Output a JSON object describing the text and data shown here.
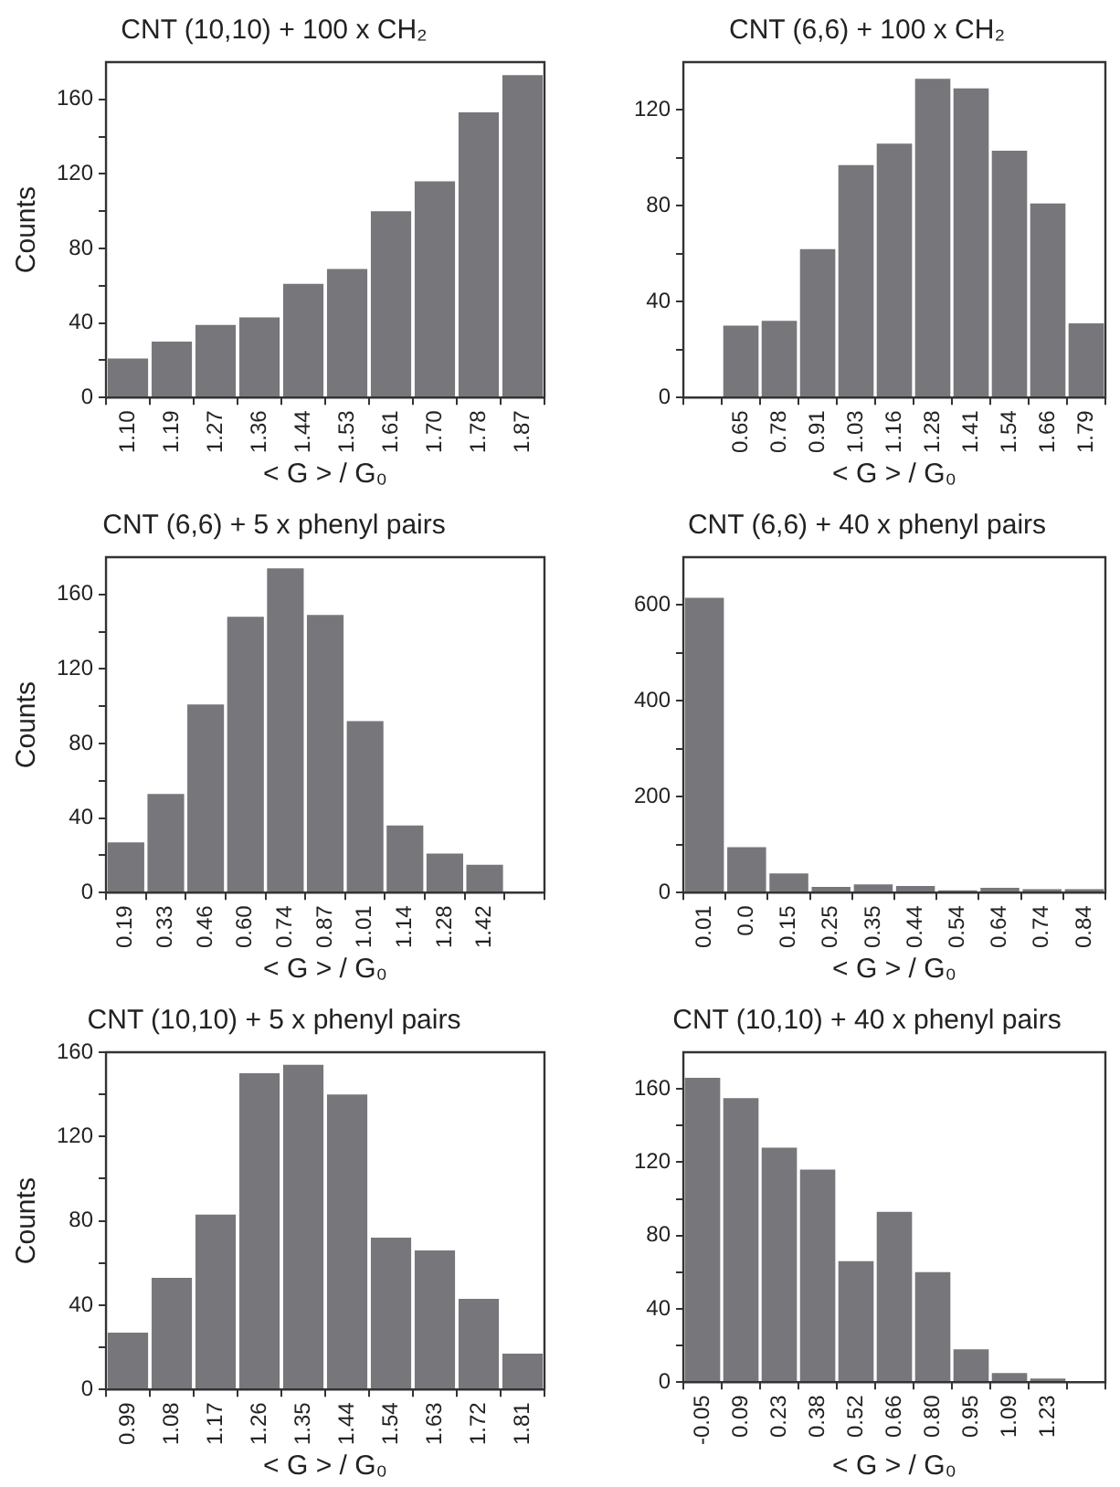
{
  "chart_data": [
    {
      "type": "bar",
      "title": "CNT (10,10) + 100 x CH₂",
      "xlabel": "< G > / G₀",
      "ylabel": "Counts",
      "categories": [
        "1.10",
        "1.19",
        "1.27",
        "1.36",
        "1.44",
        "1.53",
        "1.61",
        "1.70",
        "1.78",
        "1.87"
      ],
      "values": [
        21,
        30,
        39,
        43,
        61,
        69,
        100,
        116,
        153,
        173
      ],
      "color": "#77777b",
      "ylim": [
        0,
        180
      ],
      "yticks": [
        0,
        {
          "value": 20,
          "label": null
        },
        40,
        {
          "value": 60,
          "label": null
        },
        80,
        {
          "value": 100,
          "label": null
        },
        120,
        {
          "value": 140,
          "label": null
        },
        160
      ],
      "grid": false,
      "legend": false
    },
    {
      "type": "bar",
      "title": "CNT (6,6) + 100 x CH₂",
      "xlabel": "< G > / G₀",
      "categories": [
        null,
        "0.65",
        "0.78",
        "0.91",
        "1.03",
        "1.16",
        "1.28",
        "1.41",
        "1.54",
        "1.66",
        "1.79"
      ],
      "values": [
        null,
        30,
        32,
        62,
        97,
        106,
        133,
        129,
        103,
        81,
        31
      ],
      "color": "#77777b",
      "ylim": [
        0,
        140
      ],
      "yticks": [
        0,
        {
          "value": 20,
          "label": null
        },
        40,
        {
          "value": 60,
          "label": null
        },
        80,
        {
          "value": 100,
          "label": null
        },
        120
      ],
      "grid": false,
      "legend": false
    },
    {
      "type": "bar",
      "title": "CNT (6,6) + 5 x phenyl pairs",
      "xlabel": "< G > / G₀",
      "ylabel": "Counts",
      "categories": [
        "0.19",
        "0.33",
        "0.46",
        "0.60",
        "0.74",
        "0.87",
        "1.01",
        "1.14",
        "1.28",
        "1.42",
        null
      ],
      "values": [
        27,
        53,
        101,
        148,
        174,
        149,
        92,
        36,
        21,
        15,
        null
      ],
      "color": "#77777b",
      "ylim": [
        0,
        180
      ],
      "yticks": [
        0,
        {
          "value": 20,
          "label": null
        },
        40,
        {
          "value": 60,
          "label": null
        },
        80,
        {
          "value": 100,
          "label": null
        },
        120,
        {
          "value": 140,
          "label": null
        },
        160
      ],
      "grid": false,
      "legend": false
    },
    {
      "type": "bar",
      "title": "CNT (6,6) + 40 x phenyl pairs",
      "xlabel": "< G > / G₀",
      "categories": [
        "0.01",
        "0.0",
        "0.15",
        "0.25",
        "0.35",
        "0.44",
        "0.54",
        "0.64",
        "0.74",
        "0.84"
      ],
      "values": [
        615,
        95,
        40,
        12,
        17,
        14,
        5,
        10,
        7,
        7
      ],
      "color": "#77777b",
      "ylim": [
        0,
        700
      ],
      "yticks": [
        0,
        {
          "value": 100,
          "label": null
        },
        200,
        {
          "value": 300,
          "label": null
        },
        400,
        {
          "value": 500,
          "label": null
        },
        600
      ],
      "grid": false,
      "legend": false
    },
    {
      "type": "bar",
      "title": "CNT (10,10) + 5 x phenyl pairs",
      "xlabel": "< G > / G₀",
      "ylabel": "Counts",
      "categories": [
        "0.99",
        "1.08",
        "1.17",
        "1.26",
        "1.35",
        "1.44",
        "1.54",
        "1.63",
        "1.72",
        "1.81"
      ],
      "values": [
        27,
        53,
        83,
        150,
        154,
        140,
        72,
        66,
        43,
        17
      ],
      "color": "#77777b",
      "ylim": [
        0,
        160
      ],
      "yticks": [
        0,
        {
          "value": 20,
          "label": null
        },
        40,
        {
          "value": 60,
          "label": null
        },
        80,
        {
          "value": 100,
          "label": null
        },
        120,
        {
          "value": 140,
          "label": null
        },
        160
      ],
      "grid": false,
      "legend": false
    },
    {
      "type": "bar",
      "title": "CNT (10,10) + 40 x phenyl pairs",
      "xlabel": "< G > / G₀",
      "categories": [
        "-0.05",
        "0.09",
        "0.23",
        "0.38",
        "0.52",
        "0.66",
        "0.80",
        "0.95",
        "1.09",
        "1.23",
        null
      ],
      "values": [
        166,
        155,
        128,
        116,
        66,
        93,
        60,
        18,
        5,
        2,
        null
      ],
      "color": "#77777b",
      "ylim": [
        0,
        180
      ],
      "yticks": [
        0,
        {
          "value": 20,
          "label": null
        },
        40,
        {
          "value": 60,
          "label": null
        },
        80,
        {
          "value": 100,
          "label": null
        },
        120,
        {
          "value": 140,
          "label": null
        },
        160
      ],
      "grid": false,
      "legend": false
    }
  ]
}
